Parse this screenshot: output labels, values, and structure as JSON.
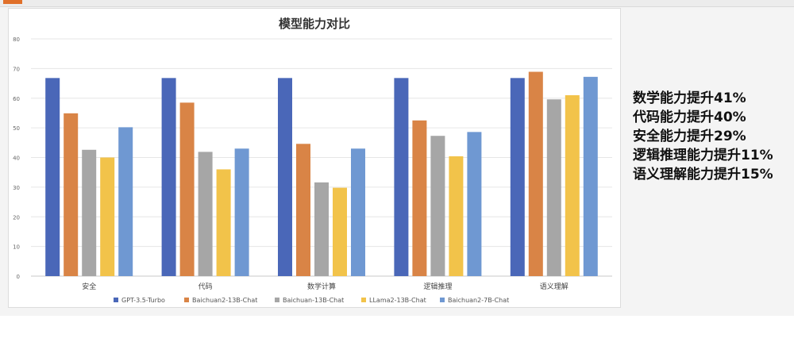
{
  "colors": {
    "GPT-3.5-Turbo": "#4a67b8",
    "Baichuan2-13B-Chat": "#d98446",
    "Baichuan-13B-Chat": "#a6a6a6",
    "LLama2-13B-Chat": "#f2c34a",
    "Baichuan2-7B-Chat": "#6f98d2"
  },
  "chart_data": {
    "type": "bar",
    "title": "模型能力对比",
    "xlabel": "",
    "ylabel": "",
    "categories": [
      "安全",
      "代码",
      "数学计算",
      "逻辑推理",
      "语义理解"
    ],
    "ylim": [
      0,
      80
    ],
    "yticks": [
      0,
      10,
      20,
      30,
      40,
      50,
      60,
      70,
      80
    ],
    "grid": true,
    "legend_position": "bottom",
    "series": [
      {
        "name": "GPT-3.5-Turbo",
        "values": [
          66.8,
          66.8,
          66.8,
          66.8,
          66.8
        ]
      },
      {
        "name": "Baichuan2-13B-Chat",
        "values": [
          54.9,
          58.5,
          44.6,
          52.5,
          68.9
        ]
      },
      {
        "name": "Baichuan-13B-Chat",
        "values": [
          42.6,
          41.9,
          31.6,
          47.3,
          59.6
        ]
      },
      {
        "name": "LLama2-13B-Chat",
        "values": [
          40.0,
          36.0,
          29.8,
          40.4,
          61.0
        ]
      },
      {
        "name": "Baichuan2-7B-Chat",
        "values": [
          50.2,
          43.0,
          43.0,
          48.6,
          67.2
        ]
      }
    ]
  },
  "notes": [
    "数学能力提升41%",
    "代码能力提升40%",
    "安全能力提升29%",
    "逻辑推理能力提升11%",
    "语义理解能力提升15%"
  ]
}
